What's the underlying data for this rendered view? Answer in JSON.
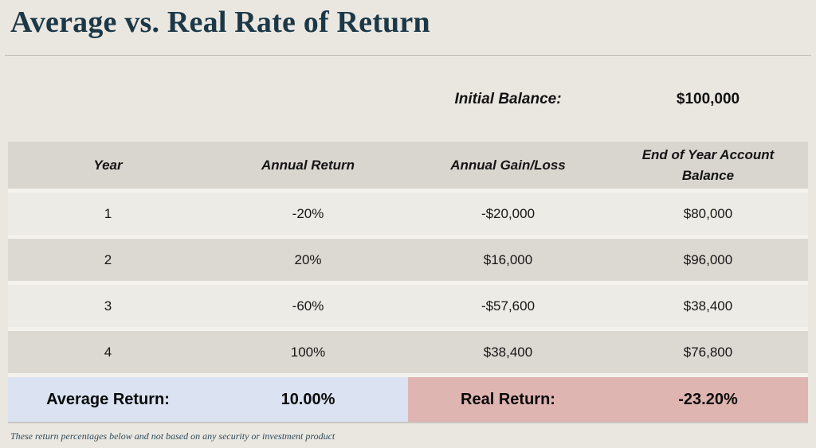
{
  "page": {
    "title": "Average vs. Real Rate of Return",
    "footer_disclaimer": "These return percentages below and not based on any security or investment product"
  },
  "initial_balance": {
    "label": "Initial Balance:",
    "value": "$100,000"
  },
  "table": {
    "columns": [
      "Year",
      "Annual Return",
      "Annual Gain/Loss",
      "End of Year Account Balance"
    ],
    "rows": [
      {
        "year": "1",
        "annual_return": "-20%",
        "gain_loss": "-$20,000",
        "end_balance": "$80,000"
      },
      {
        "year": "2",
        "annual_return": "20%",
        "gain_loss": "$16,000",
        "end_balance": "$96,000"
      },
      {
        "year": "3",
        "annual_return": "-60%",
        "gain_loss": "-$57,600",
        "end_balance": "$38,400"
      },
      {
        "year": "4",
        "annual_return": "100%",
        "gain_loss": "$38,400",
        "end_balance": "$76,800"
      }
    ]
  },
  "summary": {
    "average_return_label": "Average Return:",
    "average_return_value": "10.00%",
    "real_return_label": "Real Return:",
    "real_return_value": "-23.20%"
  },
  "colors": {
    "title_text": "#1c3847",
    "page_background": "#eae7e1",
    "header_row_bg": "#d9d6d0",
    "row_light_bg": "#edebe5",
    "row_dark_bg": "#dcd9d3",
    "average_return_bg": "#dbe2f1",
    "real_return_bg": "#dfb5b1"
  },
  "chart_data": {
    "type": "table",
    "title": "Average vs. Real Rate of Return",
    "columns": [
      "Year",
      "Annual Return",
      "Annual Gain/Loss",
      "End of Year Account Balance"
    ],
    "rows": [
      [
        "1",
        "-20%",
        "-$20,000",
        "$80,000"
      ],
      [
        "2",
        "20%",
        "$16,000",
        "$96,000"
      ],
      [
        "3",
        "-60%",
        "-$57,600",
        "$38,400"
      ],
      [
        "4",
        "100%",
        "$38,400",
        "$76,800"
      ]
    ],
    "initial_balance": "$100,000",
    "average_return": "10.00%",
    "real_return": "-23.20%"
  }
}
